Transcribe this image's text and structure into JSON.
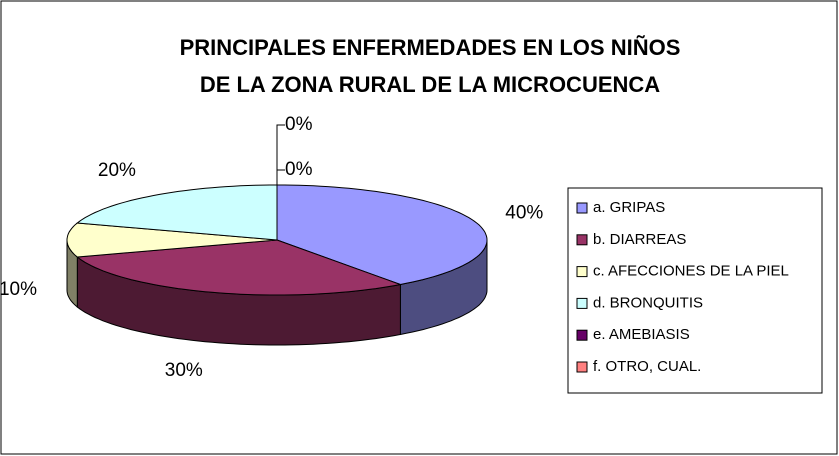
{
  "chart_data": {
    "type": "pie3d",
    "title": [
      "PRINCIPALES ENFERMEDADES EN LOS NIÑOS",
      "DE LA ZONA RURAL DE LA MICROCUENCA"
    ],
    "categories": [
      "a. GRIPAS",
      "b. DIARREAS",
      "c. AFECCIONES DE LA PIEL",
      "d. BRONQUITIS",
      "e. AMEBIASIS",
      "f. OTRO, CUAL."
    ],
    "values": [
      40,
      30,
      10,
      20,
      0,
      0
    ],
    "value_labels": [
      "40%",
      "30%",
      "10%",
      "20%",
      "0%",
      "0%"
    ],
    "colors": [
      "#9999ff",
      "#993366",
      "#ffffcc",
      "#ccffff",
      "#660066",
      "#ff8080"
    ],
    "legend": "right"
  }
}
